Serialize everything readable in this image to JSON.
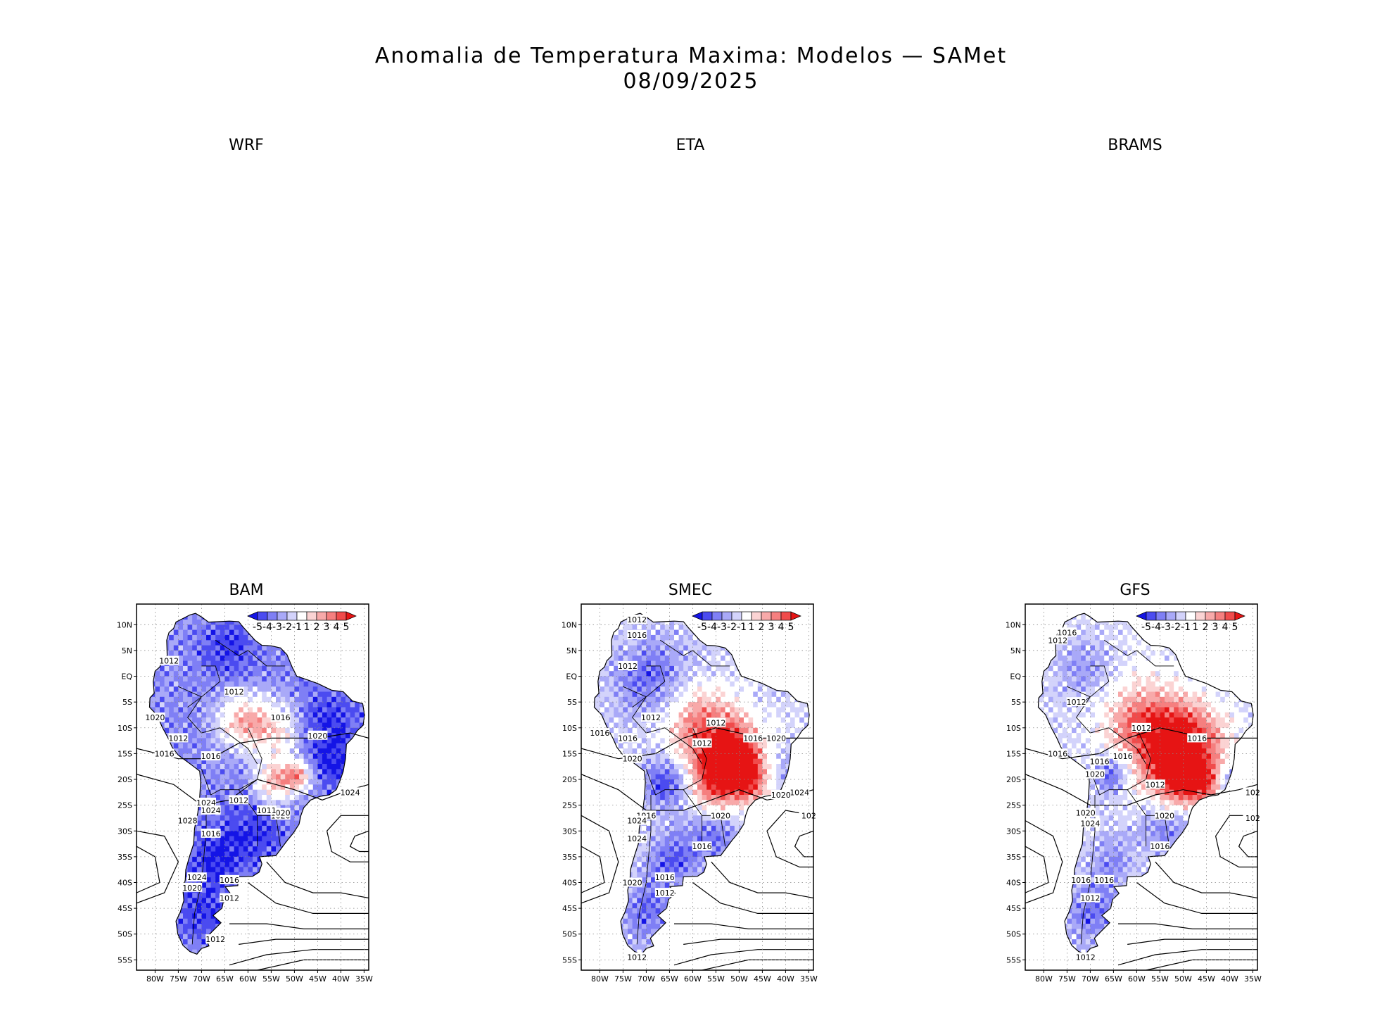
{
  "title": {
    "line1": "Anomalia de Temperatura Maxima: Modelos — SAMet",
    "line2": "08/09/2025"
  },
  "top_panels": [
    {
      "name": "WRF"
    },
    {
      "name": "ETA"
    },
    {
      "name": "BRAMS"
    }
  ],
  "bottom_panels": [
    {
      "name": "BAM",
      "labels": [
        "1012",
        "1012",
        "1020",
        "1012",
        "1016",
        "1016",
        "1016",
        "1020",
        "1024",
        "1012",
        "1020",
        "1028",
        "1024",
        "1016",
        "1024",
        "1020",
        "1016",
        "1012",
        "1012",
        "1024",
        "1020",
        "1011"
      ]
    },
    {
      "name": "SMEC",
      "labels": [
        "1012",
        "1016",
        "1012",
        "1012",
        "1016",
        "1012",
        "1016",
        "1020",
        "1016",
        "1020",
        "1012",
        "1016",
        "1020",
        "1024",
        "1024",
        "1016",
        "1020",
        "1016",
        "1012",
        "1012",
        "1024",
        "1020",
        "102"
      ]
    },
    {
      "name": "GFS",
      "labels": [
        "1016",
        "1012",
        "1012",
        "1012",
        "1016",
        "1016",
        "1012",
        "1016",
        "1020",
        "1020",
        "1024",
        "1016",
        "1016",
        "1012",
        "1012",
        "1020",
        "1016",
        "102",
        "102",
        "1016"
      ]
    }
  ],
  "axes": {
    "y_ticks": [
      "10N",
      "5N",
      "EQ",
      "5S",
      "10S",
      "15S",
      "20S",
      "25S",
      "30S",
      "35S",
      "40S",
      "45S",
      "50S",
      "55S"
    ],
    "x_ticks": [
      "80W",
      "75W",
      "70W",
      "65W",
      "60W",
      "55W",
      "50W",
      "45W",
      "40W",
      "35W"
    ]
  },
  "colorbar": {
    "labels": [
      "-5",
      "-4",
      "-3",
      "-2",
      "-1",
      "1",
      "2",
      "3",
      "4",
      "5"
    ],
    "colors": [
      "#1414e6",
      "#4b4bf0",
      "#7f7ff5",
      "#a9a9f8",
      "#d3d3fb",
      "#ffffff",
      "#fbd3d3",
      "#f8a9a9",
      "#f57f7f",
      "#f04b4b",
      "#e61414"
    ]
  },
  "colors": {
    "cold": "#1f2fe0",
    "warm": "#ee2a2a",
    "contour": "#000000",
    "grid": "#888888"
  }
}
